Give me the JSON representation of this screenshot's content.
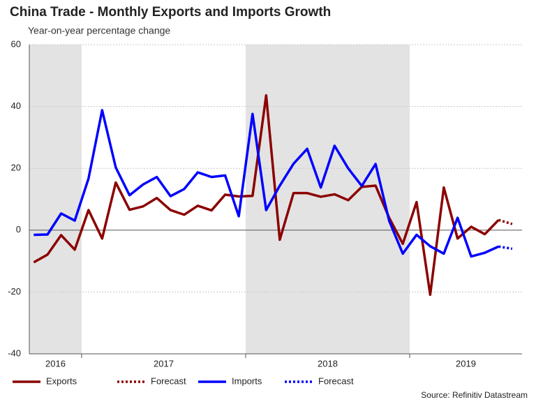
{
  "chart_data": {
    "type": "line",
    "title": "China Trade - Monthly Exports and Imports Growth",
    "subtitle": "Year-on-year percentage change",
    "source": "Source: Refinitiv Datastream",
    "x": [
      2016.708,
      2016.792,
      2016.875,
      2016.958,
      2017.042,
      2017.125,
      2017.208,
      2017.292,
      2017.375,
      2017.458,
      2017.542,
      2017.625,
      2017.708,
      2017.792,
      2017.875,
      2017.958,
      2018.042,
      2018.125,
      2018.208,
      2018.292,
      2018.375,
      2018.458,
      2018.542,
      2018.625,
      2018.708,
      2018.792,
      2018.875,
      2018.958,
      2019.042,
      2019.125,
      2019.208,
      2019.292,
      2019.375,
      2019.458,
      2019.542,
      2019.625
    ],
    "xlim": [
      2016.681,
      2019.685
    ],
    "years": [
      2016,
      2017,
      2018,
      2019
    ],
    "shaded_years": [
      true,
      false,
      true,
      false
    ],
    "shade_color": "#e3e3e3",
    "ylim": [
      -40,
      60
    ],
    "yticks": [
      -40,
      -20,
      0,
      20,
      40,
      60
    ],
    "grid": true,
    "series": [
      {
        "name": "Exports",
        "color": "#8b0000",
        "dashed": false,
        "values": [
          -10.4,
          -7.9,
          -1.6,
          -6.3,
          6.5,
          -2.7,
          15.4,
          6.6,
          7.7,
          10.4,
          6.5,
          5.0,
          7.9,
          6.4,
          11.5,
          10.9,
          11.1,
          43.6,
          -3.1,
          12.0,
          12.0,
          10.8,
          11.6,
          9.7,
          14.0,
          14.4,
          4.0,
          -4.4,
          9.1,
          -20.9,
          13.8,
          -2.7,
          1.1,
          -1.3,
          3.3,
          null
        ]
      },
      {
        "name": "Forecast",
        "color": "#8b0000",
        "dashed": true,
        "values": [
          null,
          null,
          null,
          null,
          null,
          null,
          null,
          null,
          null,
          null,
          null,
          null,
          null,
          null,
          null,
          null,
          null,
          null,
          null,
          null,
          null,
          null,
          null,
          null,
          null,
          null,
          null,
          null,
          null,
          null,
          null,
          null,
          null,
          null,
          3.3,
          2.0
        ]
      },
      {
        "name": "Imports",
        "color": "#0000ff",
        "dashed": false,
        "values": [
          -1.5,
          -1.4,
          5.4,
          3.1,
          16.7,
          38.8,
          20.3,
          11.3,
          14.8,
          17.2,
          11.0,
          13.3,
          18.7,
          17.2,
          17.7,
          4.5,
          37.6,
          6.5,
          14.4,
          21.5,
          26.3,
          13.8,
          27.3,
          20.0,
          14.3,
          21.4,
          3.0,
          -7.6,
          -1.5,
          -5.2,
          -7.6,
          4.0,
          -8.5,
          -7.3,
          -5.3,
          null
        ]
      },
      {
        "name": "Forecast",
        "color": "#0000ff",
        "dashed": true,
        "values": [
          null,
          null,
          null,
          null,
          null,
          null,
          null,
          null,
          null,
          null,
          null,
          null,
          null,
          null,
          null,
          null,
          null,
          null,
          null,
          null,
          null,
          null,
          null,
          null,
          null,
          null,
          null,
          null,
          null,
          null,
          null,
          null,
          null,
          null,
          -5.3,
          -6.0
        ]
      }
    ]
  }
}
